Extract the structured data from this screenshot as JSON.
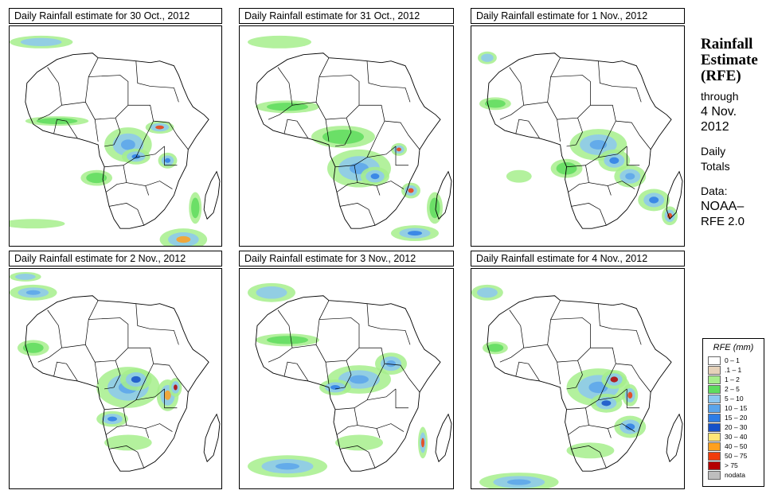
{
  "panels": [
    {
      "title": "Daily Rainfall estimate for  30 Oct., 2012"
    },
    {
      "title": "Daily Rainfall estimate for  31 Oct., 2012"
    },
    {
      "title": "Daily Rainfall estimate for  1 Nov., 2012"
    },
    {
      "title": "Daily Rainfall estimate for  2 Nov., 2012"
    },
    {
      "title": "Daily Rainfall estimate for  3 Nov., 2012"
    },
    {
      "title": "Daily Rainfall estimate for  4 Nov., 2012"
    }
  ],
  "sidebar": {
    "title_line1": "Rainfall",
    "title_line2": "Estimate",
    "title_line3": "(RFE)",
    "through": "through",
    "date_line1": "4 Nov.",
    "date_line2": "2012",
    "daily": "Daily",
    "totals": "Totals",
    "data_label": "Data:",
    "source_line1": "NOAA–",
    "source_line2": "RFE 2.0"
  },
  "legend": {
    "title": "RFE (mm)",
    "items": [
      {
        "label": "0 – 1",
        "color": "#ffffff"
      },
      {
        "label": ".1 – 1",
        "color": "#e6d2b9"
      },
      {
        "label": "1 – 2",
        "color": "#a6ee8c"
      },
      {
        "label": "2 – 5",
        "color": "#5edc5e"
      },
      {
        "label": "5 – 10",
        "color": "#8cc8f0"
      },
      {
        "label": "10 – 15",
        "color": "#5aa5eb"
      },
      {
        "label": "15 – 20",
        "color": "#2d7de6"
      },
      {
        "label": "20 – 30",
        "color": "#1450c8"
      },
      {
        "label": "30 – 40",
        "color": "#ffe678"
      },
      {
        "label": "40 – 50",
        "color": "#ffa01e"
      },
      {
        "label": "50 – 75",
        "color": "#f03c0a"
      },
      {
        "label": "> 75",
        "color": "#b40000"
      },
      {
        "label": "nodata",
        "color": "#bebebe"
      }
    ]
  }
}
